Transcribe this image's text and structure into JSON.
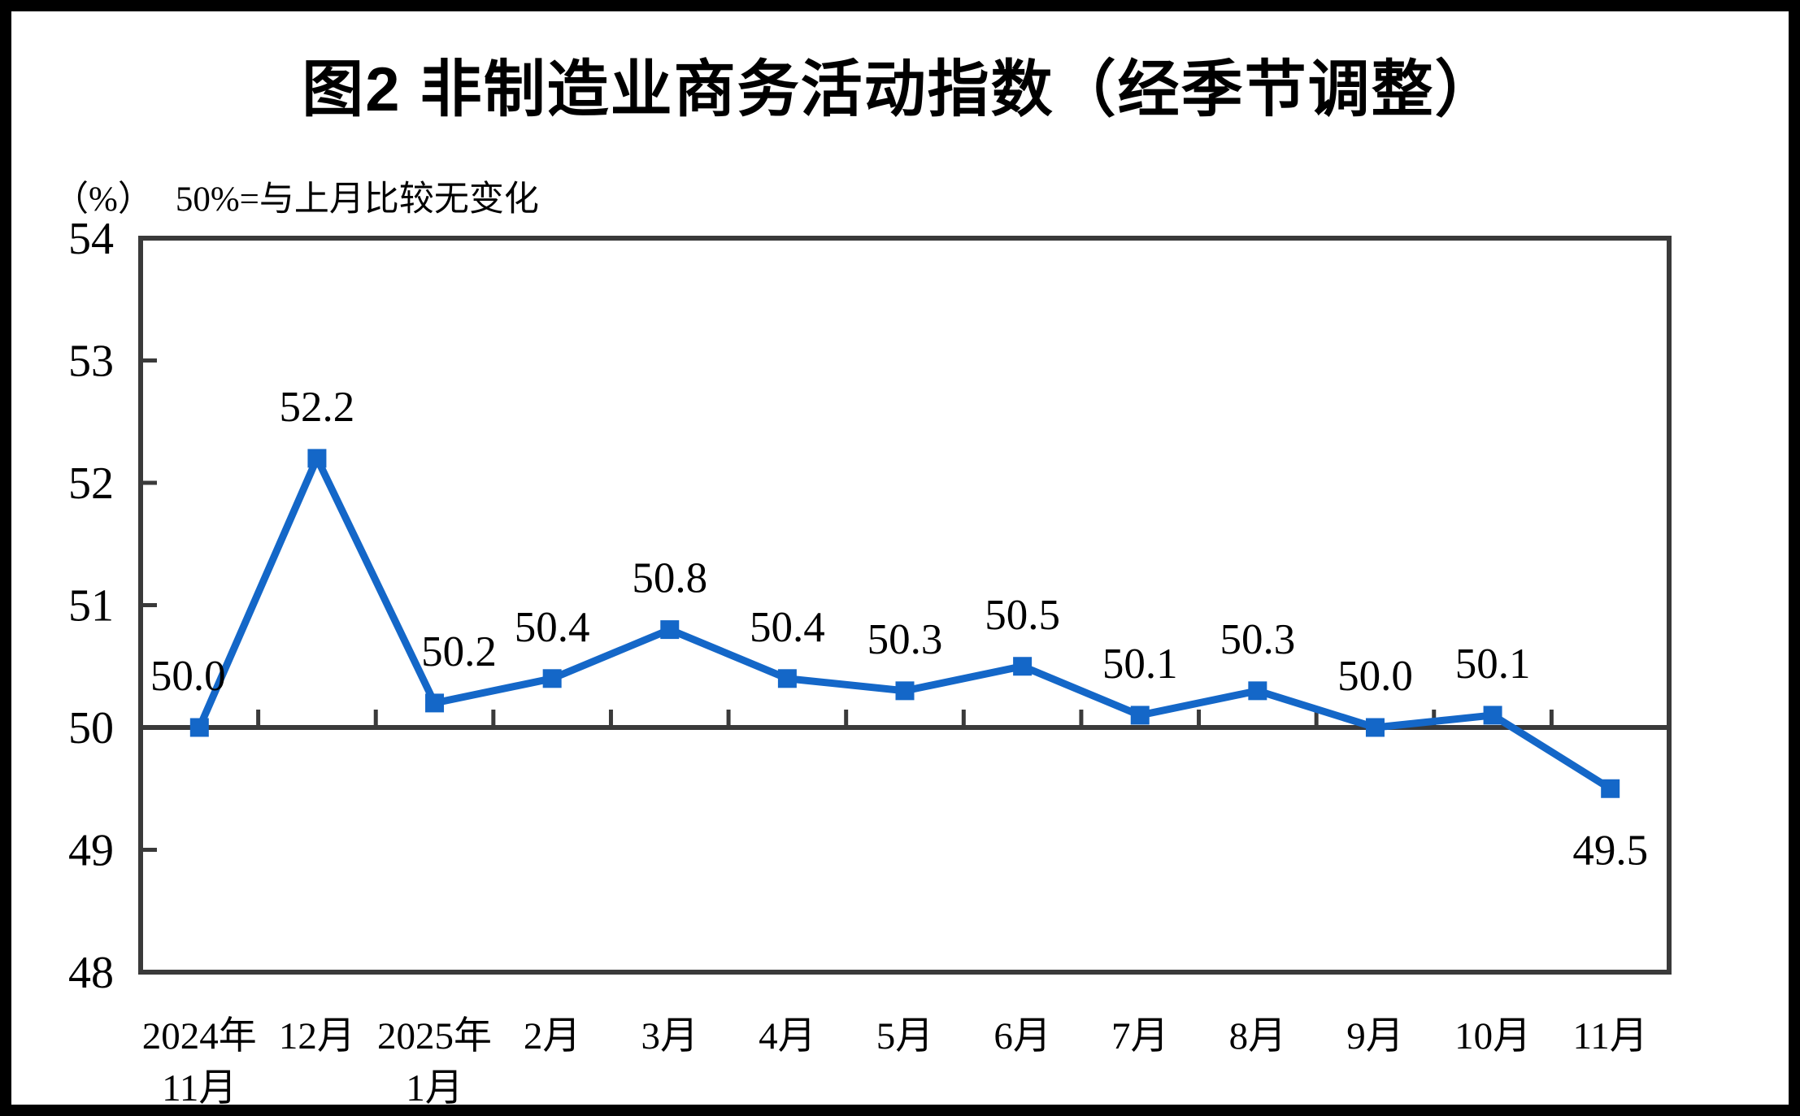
{
  "page": {
    "title": "图2 非制造业商务活动指数（经季节调整）",
    "unit_label": "（%）",
    "note": "50%=与上月比较无变化"
  },
  "chart_data": {
    "type": "line",
    "title": "图2 非制造业商务活动指数（经季节调整）",
    "subtitle": "（%） 50%=与上月比较无变化",
    "ylabel": "%",
    "xlabel": "",
    "categories": [
      "2024年11月",
      "12月",
      "2025年1月",
      "2月",
      "3月",
      "4月",
      "5月",
      "6月",
      "7月",
      "8月",
      "9月",
      "10月",
      "11月"
    ],
    "x_tick_lines": [
      [
        "2024年",
        "11月"
      ],
      [
        "12月"
      ],
      [
        "2025年",
        "1月"
      ],
      [
        "2月"
      ],
      [
        "3月"
      ],
      [
        "4月"
      ],
      [
        "5月"
      ],
      [
        "6月"
      ],
      [
        "7月"
      ],
      [
        "8月"
      ],
      [
        "9月"
      ],
      [
        "10月"
      ],
      [
        "11月"
      ]
    ],
    "series": [
      {
        "name": "非制造业商务活动指数",
        "values": [
          50.0,
          52.2,
          50.2,
          50.4,
          50.8,
          50.4,
          50.3,
          50.5,
          50.1,
          50.3,
          50.0,
          50.1,
          49.5
        ]
      }
    ],
    "point_labels": [
      "50.0",
      "52.2",
      "50.2",
      "50.4",
      "50.8",
      "50.4",
      "50.3",
      "50.5",
      "50.1",
      "50.3",
      "50.0",
      "50.1",
      "49.5"
    ],
    "ylim": [
      48,
      54
    ],
    "yticks": [
      48,
      49,
      50,
      51,
      52,
      53,
      54
    ],
    "reference_line": 50,
    "grid": false,
    "legend_position": "none",
    "marker": "square",
    "colors": {
      "series": "#1467c8",
      "axis": "#3a3a3a",
      "text": "#000000",
      "background": "#ffffff",
      "frame": "#000000"
    }
  }
}
